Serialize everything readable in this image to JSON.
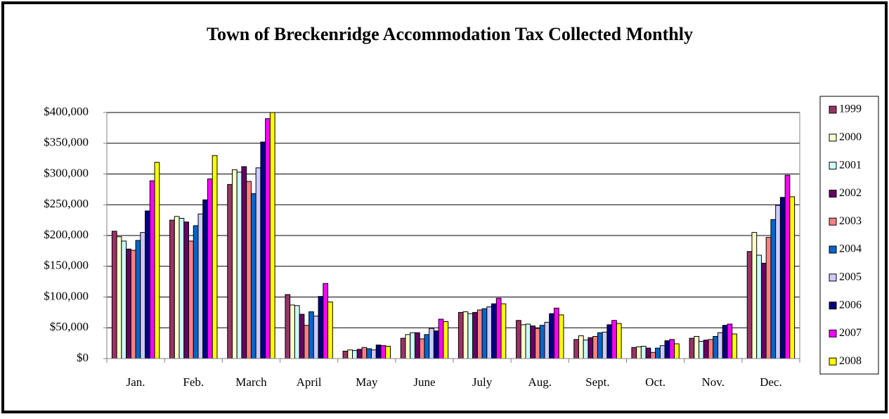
{
  "chart_data": {
    "type": "bar",
    "title": "Town of Breckenridge Accommodation Tax Collected Monthly",
    "categories": [
      "Jan.",
      "Feb.",
      "March",
      "April",
      "May",
      "June",
      "July",
      "Aug.",
      "Sept.",
      "Oct.",
      "Nov.",
      "Dec."
    ],
    "series": [
      {
        "name": "1999",
        "color": "#993366",
        "values": [
          207000,
          225000,
          283000,
          104000,
          12000,
          33000,
          75000,
          62000,
          31000,
          18000,
          33000,
          174000
        ]
      },
      {
        "name": "2000",
        "color": "#ffffcc",
        "values": [
          198000,
          231000,
          307000,
          87000,
          14000,
          39000,
          76000,
          55000,
          37000,
          19000,
          36000,
          205000
        ]
      },
      {
        "name": "2001",
        "color": "#ccffff",
        "values": [
          191000,
          228000,
          303000,
          86000,
          13000,
          42000,
          73000,
          56000,
          30000,
          20000,
          28000,
          168000
        ]
      },
      {
        "name": "2002",
        "color": "#660066",
        "values": [
          178000,
          222000,
          312000,
          72000,
          15000,
          42000,
          75000,
          53000,
          34000,
          17000,
          30000,
          155000
        ]
      },
      {
        "name": "2003",
        "color": "#ff8080",
        "values": [
          176000,
          191000,
          288000,
          54000,
          18000,
          32000,
          79000,
          49000,
          36000,
          10000,
          31000,
          197000
        ]
      },
      {
        "name": "2004",
        "color": "#0066cc",
        "values": [
          192000,
          216000,
          268000,
          76000,
          16000,
          39000,
          81000,
          54000,
          42000,
          17000,
          36000,
          226000
        ]
      },
      {
        "name": "2005",
        "color": "#ccccff",
        "values": [
          205000,
          235000,
          310000,
          69000,
          14000,
          49000,
          84000,
          59000,
          43000,
          21000,
          42000,
          249000
        ]
      },
      {
        "name": "2006",
        "color": "#000080",
        "values": [
          240000,
          258000,
          352000,
          101000,
          22000,
          45000,
          89000,
          73000,
          55000,
          29000,
          54000,
          262000
        ]
      },
      {
        "name": "2007",
        "color": "#ff00ff",
        "values": [
          289000,
          292000,
          390000,
          122000,
          21000,
          64000,
          98000,
          82000,
          62000,
          31000,
          56000,
          298000
        ]
      },
      {
        "name": "2008",
        "color": "#ffff00",
        "values": [
          319000,
          330000,
          400000,
          92000,
          20000,
          60000,
          89000,
          71000,
          57000,
          24000,
          40000,
          263000
        ]
      }
    ],
    "ylim": [
      0,
      400000
    ],
    "yticks": [
      {
        "value": 0,
        "label": "$0"
      },
      {
        "value": 50000,
        "label": "$50,000"
      },
      {
        "value": 100000,
        "label": "$100,000"
      },
      {
        "value": 150000,
        "label": "$150,000"
      },
      {
        "value": 200000,
        "label": "$200,000"
      },
      {
        "value": 250000,
        "label": "$250,000"
      },
      {
        "value": 300000,
        "label": "$300,000"
      },
      {
        "value": 350000,
        "label": "$350,000"
      },
      {
        "value": 400000,
        "label": "$400,000"
      }
    ],
    "grid": true,
    "legend": "right"
  }
}
